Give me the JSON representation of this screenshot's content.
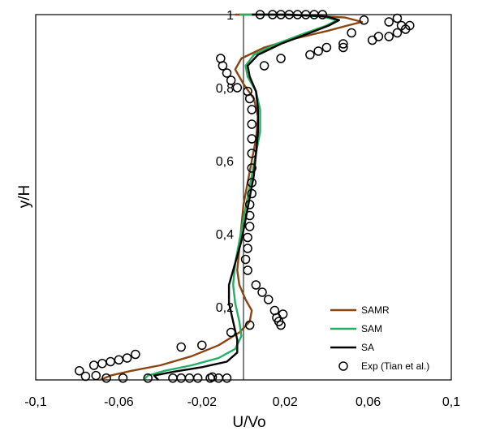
{
  "chart_data": {
    "type": "line",
    "xlabel": "U/Vo",
    "ylabel": "y/H",
    "xlim": [
      -0.1,
      0.1
    ],
    "ylim": [
      0,
      1
    ],
    "x_ticks": [
      "-0,1",
      "-0,06",
      "-0,02",
      "0,02",
      "0,06",
      "0,1"
    ],
    "y_ticks": [
      "0,2",
      "0,4",
      "0,6",
      "0,8",
      "1"
    ],
    "grid": false,
    "legend_position": "bottom-right",
    "series": [
      {
        "name": "SAMR",
        "color": "#8B4513",
        "kind": "line",
        "points": [
          [
            -0.069,
            0.0
          ],
          [
            -0.064,
            0.012
          ],
          [
            -0.054,
            0.025
          ],
          [
            -0.04,
            0.04
          ],
          [
            -0.025,
            0.065
          ],
          [
            -0.012,
            0.095
          ],
          [
            -0.002,
            0.13
          ],
          [
            0.003,
            0.16
          ],
          [
            0.004,
            0.19
          ],
          [
            0.001,
            0.22
          ],
          [
            -0.002,
            0.26
          ],
          [
            -0.003,
            0.3
          ],
          [
            -0.002,
            0.36
          ],
          [
            -0.001,
            0.42
          ],
          [
            0.0,
            0.48
          ],
          [
            0.002,
            0.54
          ],
          [
            0.004,
            0.6
          ],
          [
            0.006,
            0.66
          ],
          [
            0.007,
            0.72
          ],
          [
            0.005,
            0.77
          ],
          [
            0.0,
            0.81
          ],
          [
            -0.004,
            0.85
          ],
          [
            -0.001,
            0.88
          ],
          [
            0.01,
            0.91
          ],
          [
            0.025,
            0.935
          ],
          [
            0.04,
            0.955
          ],
          [
            0.05,
            0.97
          ],
          [
            0.057,
            0.98
          ],
          [
            0.049,
            0.992
          ],
          [
            0.03,
            0.998
          ],
          [
            0.01,
            1.0
          ],
          [
            -0.004,
            1.0
          ]
        ]
      },
      {
        "name": "SAM",
        "color": "#22B064",
        "kind": "line",
        "points": [
          [
            -0.048,
            0.0
          ],
          [
            -0.046,
            0.012
          ],
          [
            -0.038,
            0.025
          ],
          [
            -0.025,
            0.04
          ],
          [
            -0.012,
            0.06
          ],
          [
            -0.004,
            0.085
          ],
          [
            -0.001,
            0.12
          ],
          [
            -0.002,
            0.16
          ],
          [
            -0.004,
            0.21
          ],
          [
            -0.005,
            0.26
          ],
          [
            -0.004,
            0.32
          ],
          [
            -0.002,
            0.38
          ],
          [
            0.0,
            0.44
          ],
          [
            0.002,
            0.5
          ],
          [
            0.004,
            0.56
          ],
          [
            0.006,
            0.62
          ],
          [
            0.008,
            0.68
          ],
          [
            0.008,
            0.74
          ],
          [
            0.006,
            0.79
          ],
          [
            0.002,
            0.83
          ],
          [
            0.001,
            0.86
          ],
          [
            0.005,
            0.89
          ],
          [
            0.016,
            0.92
          ],
          [
            0.03,
            0.95
          ],
          [
            0.04,
            0.97
          ],
          [
            0.045,
            0.985
          ],
          [
            0.038,
            0.995
          ],
          [
            0.02,
            1.0
          ],
          [
            -0.002,
            1.0
          ]
        ]
      },
      {
        "name": "SA",
        "color": "#000000",
        "kind": "line",
        "points": [
          [
            -0.041,
            0.0
          ],
          [
            -0.043,
            0.012
          ],
          [
            -0.034,
            0.022
          ],
          [
            -0.02,
            0.035
          ],
          [
            -0.008,
            0.05
          ],
          [
            -0.003,
            0.075
          ],
          [
            -0.003,
            0.11
          ],
          [
            -0.005,
            0.16
          ],
          [
            -0.007,
            0.21
          ],
          [
            -0.007,
            0.26
          ],
          [
            -0.004,
            0.32
          ],
          [
            -0.001,
            0.38
          ],
          [
            0.001,
            0.44
          ],
          [
            0.003,
            0.5
          ],
          [
            0.005,
            0.56
          ],
          [
            0.006,
            0.62
          ],
          [
            0.007,
            0.68
          ],
          [
            0.007,
            0.74
          ],
          [
            0.006,
            0.79
          ],
          [
            0.003,
            0.83
          ],
          [
            0.002,
            0.86
          ],
          [
            0.007,
            0.89
          ],
          [
            0.018,
            0.92
          ],
          [
            0.032,
            0.95
          ],
          [
            0.041,
            0.97
          ],
          [
            0.046,
            0.985
          ],
          [
            0.04,
            0.995
          ],
          [
            0.022,
            1.0
          ],
          [
            0.004,
            1.0
          ]
        ]
      },
      {
        "name": "Exp (Tian et al.)",
        "color": "#000000",
        "kind": "marker",
        "points": [
          [
            -0.079,
            0.025
          ],
          [
            -0.076,
            0.01
          ],
          [
            -0.072,
            0.04
          ],
          [
            -0.071,
            0.012
          ],
          [
            -0.068,
            0.045
          ],
          [
            -0.064,
            0.05
          ],
          [
            -0.06,
            0.055
          ],
          [
            -0.056,
            0.06
          ],
          [
            -0.052,
            0.07
          ],
          [
            -0.066,
            0.005
          ],
          [
            -0.058,
            0.005
          ],
          [
            -0.046,
            0.005
          ],
          [
            -0.034,
            0.005
          ],
          [
            -0.03,
            0.005
          ],
          [
            -0.026,
            0.005
          ],
          [
            -0.022,
            0.005
          ],
          [
            -0.016,
            0.005
          ],
          [
            -0.012,
            0.005
          ],
          [
            -0.008,
            0.005
          ],
          [
            -0.015,
            0.008
          ],
          [
            -0.03,
            0.09
          ],
          [
            -0.02,
            0.095
          ],
          [
            -0.006,
            0.13
          ],
          [
            0.003,
            0.15
          ],
          [
            0.016,
            0.17
          ],
          [
            0.018,
            0.15
          ],
          [
            0.019,
            0.18
          ],
          [
            0.017,
            0.16
          ],
          [
            0.015,
            0.19
          ],
          [
            0.012,
            0.22
          ],
          [
            0.009,
            0.24
          ],
          [
            0.006,
            0.26
          ],
          [
            0.002,
            0.3
          ],
          [
            0.001,
            0.33
          ],
          [
            0.002,
            0.36
          ],
          [
            0.002,
            0.39
          ],
          [
            0.003,
            0.42
          ],
          [
            0.003,
            0.45
          ],
          [
            0.003,
            0.48
          ],
          [
            0.004,
            0.51
          ],
          [
            0.004,
            0.54
          ],
          [
            0.004,
            0.58
          ],
          [
            0.004,
            0.62
          ],
          [
            0.004,
            0.66
          ],
          [
            0.004,
            0.7
          ],
          [
            0.004,
            0.74
          ],
          [
            0.003,
            0.77
          ],
          [
            -0.003,
            0.8
          ],
          [
            -0.006,
            0.82
          ],
          [
            -0.008,
            0.84
          ],
          [
            -0.01,
            0.86
          ],
          [
            -0.011,
            0.88
          ],
          [
            0.002,
            0.79
          ],
          [
            0.01,
            0.86
          ],
          [
            0.018,
            0.88
          ],
          [
            0.032,
            0.89
          ],
          [
            0.036,
            0.9
          ],
          [
            0.04,
            0.91
          ],
          [
            0.048,
            0.92
          ],
          [
            0.048,
            0.91
          ],
          [
            0.062,
            0.93
          ],
          [
            0.065,
            0.94
          ],
          [
            0.07,
            0.94
          ],
          [
            0.074,
            0.95
          ],
          [
            0.078,
            0.96
          ],
          [
            0.08,
            0.97
          ],
          [
            0.076,
            0.97
          ],
          [
            0.074,
            0.99
          ],
          [
            0.07,
            0.98
          ],
          [
            0.058,
            0.985
          ],
          [
            0.052,
            0.95
          ],
          [
            0.03,
            1.0
          ],
          [
            0.034,
            1.0
          ],
          [
            0.038,
            1.0
          ],
          [
            0.014,
            1.0
          ],
          [
            0.018,
            1.0
          ],
          [
            0.022,
            1.0
          ],
          [
            0.026,
            1.0
          ],
          [
            0.008,
            1.0
          ]
        ]
      }
    ]
  }
}
